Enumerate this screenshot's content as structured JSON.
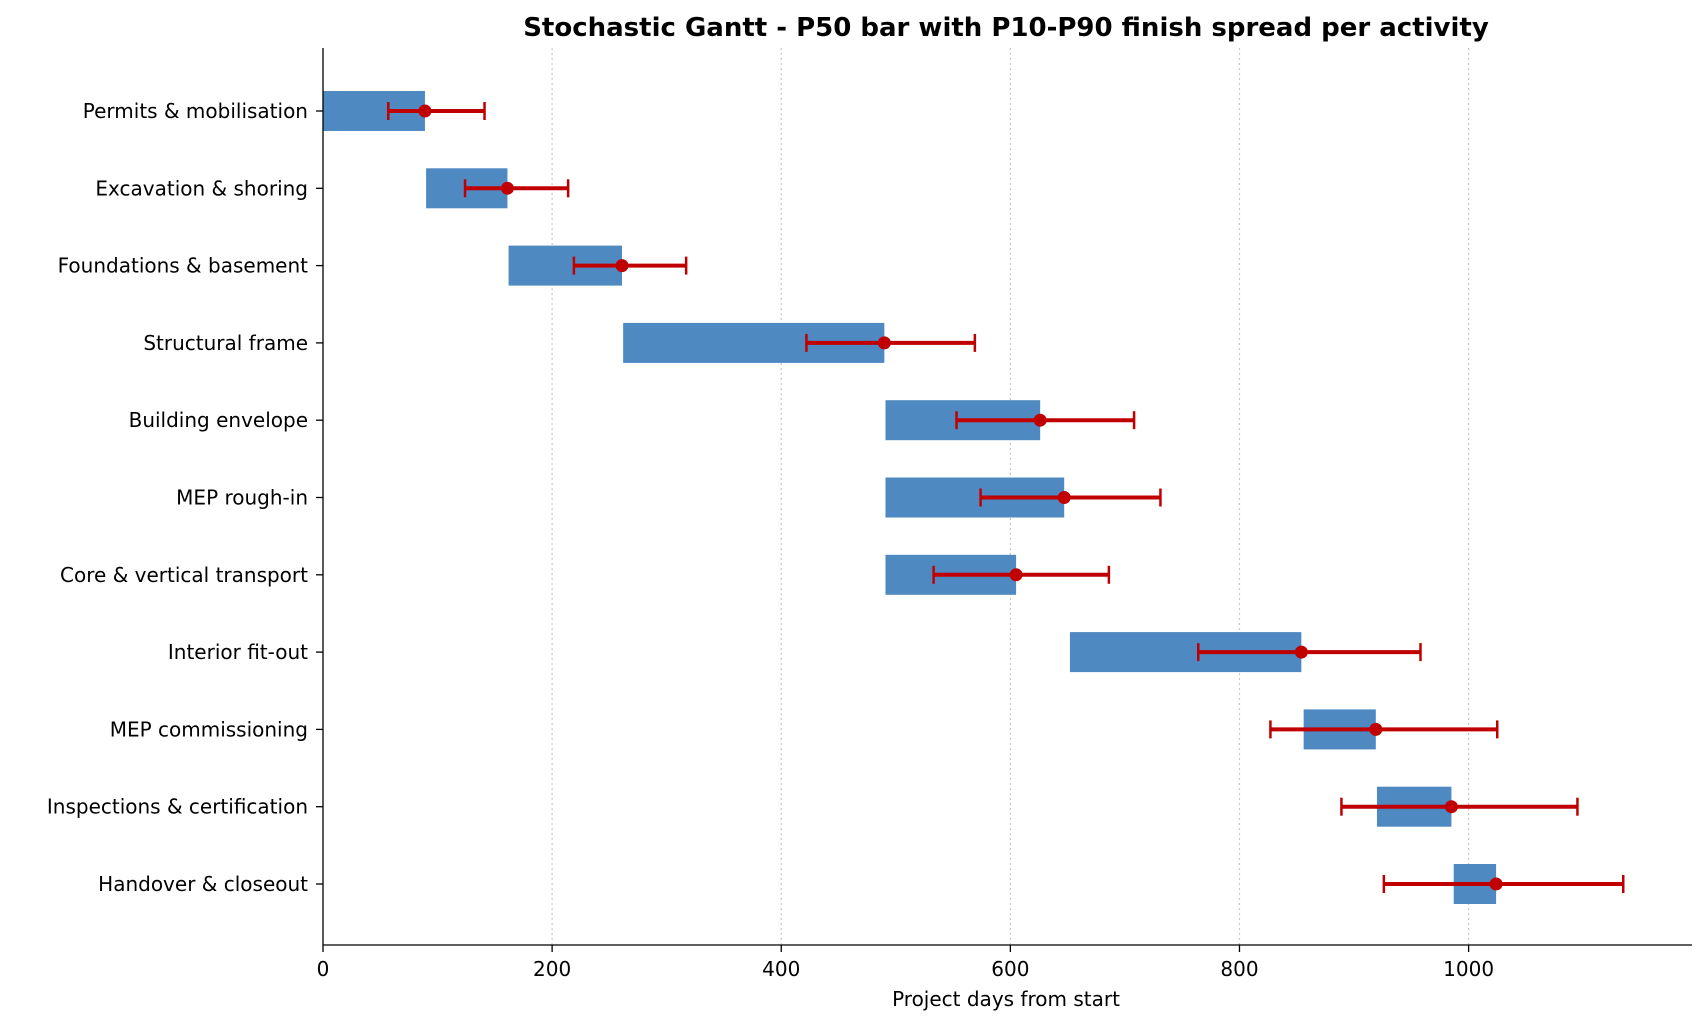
{
  "chart_data": {
    "type": "bar",
    "title": "Stochastic Gantt - P50 bar with P10-P90 finish spread per activity",
    "xlabel": "Project days from start",
    "ylabel": "",
    "xlim": [
      0,
      1195
    ],
    "xticks": [
      0,
      200,
      400,
      600,
      800,
      1000
    ],
    "grid": "x-dotted",
    "colors": {
      "bar": "#4e89c1",
      "spread": "#c00000"
    },
    "categories": [
      "Permits & mobilisation",
      "Excavation & shoring",
      "Foundations & basement",
      "Structural frame",
      "Building envelope",
      "MEP rough-in",
      "Core & vertical transport",
      "Interior fit-out",
      "MEP commissioning",
      "Inspections & certification",
      "Handover & closeout"
    ],
    "activities": [
      {
        "start": 0,
        "p50_finish": 89,
        "p10": 57,
        "p90": 141
      },
      {
        "start": 90,
        "p50_finish": 161,
        "p10": 124,
        "p90": 214
      },
      {
        "start": 162,
        "p50_finish": 261,
        "p10": 219,
        "p90": 317
      },
      {
        "start": 262,
        "p50_finish": 490,
        "p10": 422,
        "p90": 569
      },
      {
        "start": 491,
        "p50_finish": 626,
        "p10": 553,
        "p90": 708
      },
      {
        "start": 491,
        "p50_finish": 647,
        "p10": 574,
        "p90": 731
      },
      {
        "start": 491,
        "p50_finish": 605,
        "p10": 533,
        "p90": 686
      },
      {
        "start": 652,
        "p50_finish": 854,
        "p10": 764,
        "p90": 958
      },
      {
        "start": 856,
        "p50_finish": 919,
        "p10": 827,
        "p90": 1025
      },
      {
        "start": 920,
        "p50_finish": 985,
        "p10": 889,
        "p90": 1095
      },
      {
        "start": 987,
        "p50_finish": 1024,
        "p10": 926,
        "p90": 1135
      }
    ]
  }
}
